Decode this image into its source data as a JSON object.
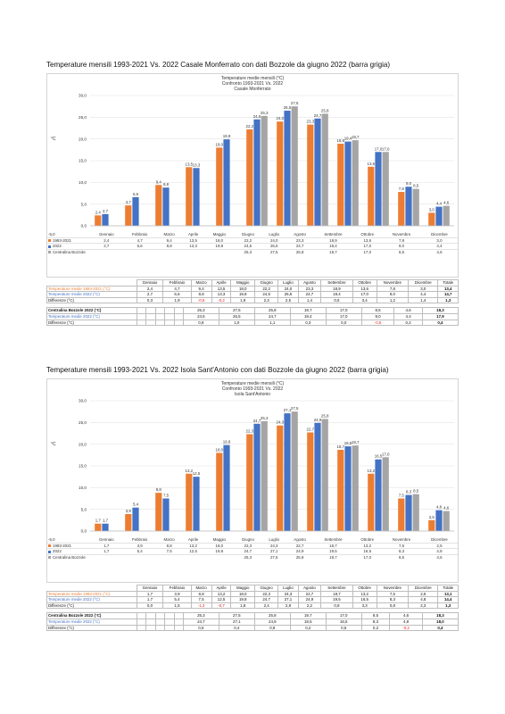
{
  "colors": {
    "orange": "#ED7D31",
    "blue": "#4472C4",
    "gray": "#A5A5A5",
    "red": "#E31E1E"
  },
  "months": [
    "Gennaio",
    "Febbraio",
    "Marzo",
    "Aprile",
    "Maggio",
    "Giugno",
    "Luglio",
    "Agosto",
    "Settembre",
    "Ottobre",
    "Novembre",
    "Dicembre"
  ],
  "sections": [
    {
      "title": "Temperature mensili 1993-2021 Vs. 2022 Casale Monferrato con dati Bozzole da giugno 2022 (barra grigia)",
      "chart_title": [
        "Temperature medie mensili (°C)",
        "Confronto 1993-2021 Vs. 2022",
        "Casale Monferrato"
      ],
      "y_axis_label": "°C",
      "y_min_label": "-5,0",
      "y_ticks": [
        "30,0",
        "25,0",
        "20,0",
        "15,0",
        "10,0",
        "5,0",
        "0,0"
      ],
      "chart_data": {
        "type": "bar",
        "ylim": [
          0,
          30
        ],
        "categories": [
          "Gennaio",
          "Febbraio",
          "Marzo",
          "Aprile",
          "Maggio",
          "Giugno",
          "Luglio",
          "Agosto",
          "Settembre",
          "Ottobre",
          "Novembre",
          "Dicembre"
        ],
        "series": [
          {
            "name": "1993-2021",
            "values": [
              2.4,
              4.7,
              9.4,
              13.5,
              18.0,
              22.2,
              24.0,
              23.3,
              18.9,
              13.6,
              7.8,
              3.0
            ],
            "labels": [
              "2,4",
              "4,7",
              "9,4",
              "13,5",
              "18,0",
              "22,2",
              "24,0",
              "23,3",
              "18,9",
              "13,6",
              "7,8",
              "3,0"
            ]
          },
          {
            "name": "2022",
            "values": [
              2.7,
              6.6,
              8.8,
              13.3,
              19.9,
              24.5,
              26.5,
              24.7,
              19.4,
              17.0,
              9.0,
              4.4
            ],
            "labels": [
              "2,7",
              "6,6",
              "8,8",
              "13,3",
              "19,9",
              "24,5",
              "26,5",
              "24,7",
              "19,4",
              "17,0",
              "9,0",
              "4,4"
            ]
          },
          {
            "name": "Centralina Bozzole",
            "values": [
              null,
              null,
              null,
              null,
              null,
              25.3,
              27.5,
              25.8,
              19.7,
              17.0,
              8.5,
              4.6
            ],
            "labels": [
              "",
              "",
              "",
              "",
              "",
              "25,3",
              "27,5",
              "25,8",
              "19,7",
              "17,0",
              "8,5",
              "4,6"
            ]
          }
        ]
      },
      "stats_header": [
        "Gennaio",
        "Febbraio",
        "Marzo",
        "Aprile",
        "Maggio",
        "Giugno",
        "Luglio",
        "Agosto",
        "Settembre",
        "Ottobre",
        "Novembre",
        "Dicembre",
        "Totale"
      ],
      "stats_rows": [
        {
          "label": "Temperature medie 1993-2021 (°C)",
          "label_color": "orange",
          "values": [
            "2,4",
            "4,7",
            "9,4",
            "13,5",
            "18,0",
            "22,2",
            "24,0",
            "23,3",
            "18,9",
            "13,6",
            "7,8",
            "3,0",
            "13,4"
          ]
        },
        {
          "label": "Temperature medie 2022 (°C)",
          "label_color": "blue",
          "values": [
            "2,7",
            "6,6",
            "8,8",
            "13,3",
            "19,9",
            "24,5",
            "26,5",
            "24,7",
            "19,4",
            "17,0",
            "9,0",
            "4,4",
            "14,7"
          ]
        },
        {
          "label": "Differenze (°C)",
          "label_color": "",
          "values": [
            "0,3",
            "1,9",
            "-0,6",
            "-0,2",
            "1,9",
            "2,3",
            "2,5",
            "1,4",
            "0,5",
            "3,4",
            "1,2",
            "1,4",
            "1,3"
          ]
        }
      ],
      "bozzole_rows": [
        {
          "label": "Centralina Bozzole 2022 (°C)",
          "values": [
            "",
            "",
            "",
            "",
            "",
            "25,3",
            "27,5",
            "25,8",
            "19,7",
            "17,0",
            "8,5",
            "4,6",
            "18,3"
          ]
        },
        {
          "label": "Temperature medie 2022 (°C)",
          "values": [
            "",
            "",
            "",
            "",
            "",
            "24,5",
            "26,5",
            "24,7",
            "19,4",
            "17,0",
            "9,0",
            "4,4",
            "17,9"
          ]
        },
        {
          "label": "Differenze (°C)",
          "values": [
            "",
            "",
            "",
            "",
            "",
            "0,8",
            "1,0",
            "1,1",
            "0,3",
            "0,0",
            "-0,5",
            "0,2",
            "0,4"
          ]
        }
      ]
    },
    {
      "title": "Temperature mensili 1993-2021 Vs. 2022 Isola Sant'Antonio con dati Bozzole da giugno 2022 (barra grigia)",
      "chart_title": [
        "Temperature medie mensili (°C)",
        "Confronto 1993-2021 Vs. 2022",
        "Isola Sant'Antonio"
      ],
      "y_axis_label": "°C",
      "y_min_label": "-5,0",
      "y_ticks": [
        "30,0",
        "25,0",
        "20,0",
        "15,0",
        "10,0",
        "5,0",
        "0,0"
      ],
      "chart_data": {
        "type": "bar",
        "ylim": [
          0,
          30
        ],
        "categories": [
          "Gennaio",
          "Febbraio",
          "Marzo",
          "Aprile",
          "Maggio",
          "Giugno",
          "Luglio",
          "Agosto",
          "Settembre",
          "Ottobre",
          "Novembre",
          "Dicembre"
        ],
        "series": [
          {
            "name": "1993-2021",
            "values": [
              1.7,
              3.9,
              8.8,
              13.2,
              18.0,
              22.3,
              24.3,
              22.7,
              18.7,
              13.2,
              7.5,
              2.5
            ],
            "labels": [
              "1,7",
              "3,9",
              "8,8",
              "13,2",
              "18,0",
              "22,3",
              "24,3",
              "22,7",
              "18,7",
              "13,2",
              "7,5",
              "2,5"
            ]
          },
          {
            "name": "2022",
            "values": [
              1.7,
              5.4,
              7.5,
              12.5,
              19.8,
              24.7,
              27.1,
              24.9,
              19.5,
              16.5,
              8.3,
              4.8
            ],
            "labels": [
              "1,7",
              "5,4",
              "7,5",
              "12,5",
              "19,8",
              "24,7",
              "27,1",
              "24,9",
              "19,5",
              "16,5",
              "8,3",
              "4,8"
            ]
          },
          {
            "name": "Centralina Bozzole",
            "values": [
              null,
              null,
              null,
              null,
              null,
              25.3,
              27.5,
              25.8,
              19.7,
              17.0,
              8.5,
              4.6
            ],
            "labels": [
              "",
              "",
              "",
              "",
              "",
              "25,3",
              "27,5",
              "25,8",
              "19,7",
              "17,0",
              "8,5",
              "4,6"
            ]
          }
        ]
      },
      "stats_header": [
        "Gennaio",
        "Febbraio",
        "Marzo",
        "Aprile",
        "Maggio",
        "Giugno",
        "Luglio",
        "Agosto",
        "Settembre",
        "Ottobre",
        "Novembre",
        "Dicembre",
        "Totale"
      ],
      "stats_rows": [
        {
          "label": "Temperature medie 1993-2021 (°C)",
          "label_color": "orange",
          "values": [
            "1,7",
            "3,9",
            "8,8",
            "13,2",
            "18,0",
            "22,3",
            "24,3",
            "22,7",
            "18,7",
            "13,2",
            "7,5",
            "2,5",
            "13,1"
          ]
        },
        {
          "label": "Temperature medie 2022 (°C)",
          "label_color": "blue",
          "values": [
            "1,7",
            "5,4",
            "7,5",
            "12,5",
            "19,8",
            "24,7",
            "27,1",
            "24,9",
            "19,5",
            "16,5",
            "8,3",
            "4,8",
            "14,4"
          ]
        },
        {
          "label": "Differenze (°C)",
          "label_color": "",
          "values": [
            "0,0",
            "1,5",
            "-1,3",
            "-0,7",
            "1,8",
            "2,4",
            "2,8",
            "2,2",
            "0,8",
            "3,3",
            "0,8",
            "2,3",
            "1,3"
          ]
        }
      ],
      "bozzole_rows": [
        {
          "label": "Centralina Bozzole 2022 (°C)",
          "values": [
            "",
            "",
            "",
            "",
            "",
            "25,3",
            "27,5",
            "25,8",
            "19,7",
            "17,0",
            "8,5",
            "4,6",
            "18,3"
          ]
        },
        {
          "label": "Temperature medie 2022 (°C)",
          "values": [
            "",
            "",
            "",
            "",
            "",
            "24,7",
            "27,1",
            "24,9",
            "19,5",
            "16,5",
            "8,3",
            "4,8",
            "18,0"
          ]
        },
        {
          "label": "Differenze (°C)",
          "values": [
            "",
            "",
            "",
            "",
            "",
            "0,6",
            "0,4",
            "0,9",
            "0,2",
            "0,5",
            "0,2",
            "-0,2",
            "0,4"
          ]
        }
      ]
    }
  ]
}
